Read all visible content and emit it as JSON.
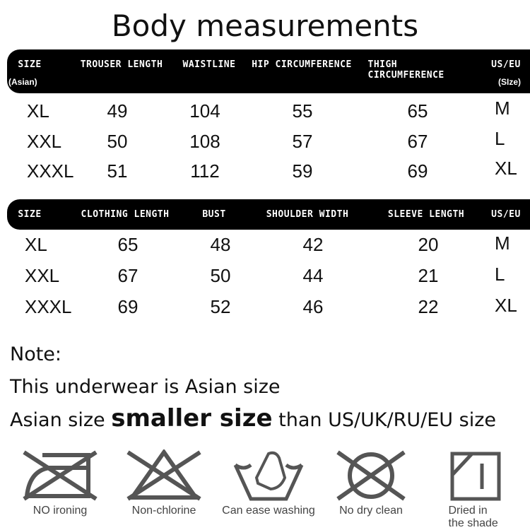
{
  "title": "Body measurements",
  "table1": {
    "headers": [
      "SIZE",
      "TROUSER LENGTH",
      "WAISTLINE",
      "HIP CIRCUMFERENCE",
      "THIGH CIRCUMFERENCE",
      "US/EU"
    ],
    "subheaders": {
      "size": "(Asian)",
      "us": "(SIze)"
    },
    "rows": [
      [
        "XL",
        "49",
        "104",
        "55",
        "65",
        "M"
      ],
      [
        "XXL",
        "50",
        "108",
        "57",
        "67",
        "L"
      ],
      [
        "XXXL",
        "51",
        "112",
        "59",
        "69",
        "XL"
      ]
    ]
  },
  "table2": {
    "headers": [
      "SIZE",
      "CLOTHING LENGTH",
      "BUST",
      "SHOULDER WIDTH",
      "SLEEVE LENGTH",
      "US/EU"
    ],
    "rows": [
      [
        "XL",
        "65",
        "48",
        "42",
        "20",
        "M"
      ],
      [
        "XXL",
        "67",
        "50",
        "44",
        "21",
        "L"
      ],
      [
        "XXXL",
        "69",
        "52",
        "46",
        "22",
        "XL"
      ]
    ]
  },
  "note": {
    "heading": "Note:",
    "line1": "This underwear is Asian size",
    "line2_a": "Asian size ",
    "line2_b": "smaller size",
    "line2_c": " than US/UK/RU/EU size"
  },
  "care": [
    {
      "icon": "no-ironing-icon",
      "label": "NO ironing"
    },
    {
      "icon": "non-chlorine-icon",
      "label": "Non-chlorine"
    },
    {
      "icon": "hand-wash-icon",
      "label": "Can ease washing"
    },
    {
      "icon": "no-dry-clean-icon",
      "label": "No dry clean"
    },
    {
      "icon": "dry-in-shade-icon",
      "label": "Dried in the shade"
    }
  ],
  "colors": {
    "header_bg": "#000000",
    "icon": "#555555"
  }
}
